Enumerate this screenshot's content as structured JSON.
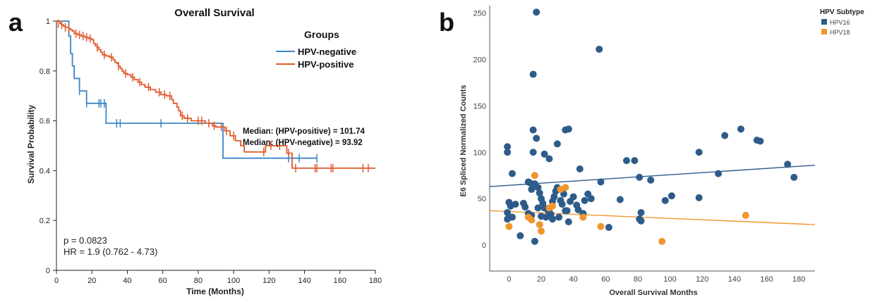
{
  "chart_data": [
    {
      "panel": "a",
      "type": "line",
      "title": "Overall Survival",
      "xlabel": "Time (Months)",
      "ylabel": "Survival Probability",
      "xlim": [
        0,
        180
      ],
      "ylim": [
        0,
        1
      ],
      "xticks": [
        "0",
        "20",
        "40",
        "60",
        "80",
        "100",
        "120",
        "140",
        "160",
        "180"
      ],
      "yticks": [
        "0",
        "0.2",
        "0.4",
        "0.6",
        "0.8",
        "1"
      ],
      "legend": {
        "title": "Groups",
        "position": "top-right"
      },
      "series": [
        {
          "name": "HPV-negative",
          "color": "#3a86c8",
          "steps": [
            [
              0,
              1
            ],
            [
              4,
              1
            ],
            [
              7,
              0.94
            ],
            [
              8,
              0.87
            ],
            [
              9,
              0.82
            ],
            [
              10,
              0.77
            ],
            [
              13,
              0.72
            ],
            [
              17,
              0.67
            ],
            [
              28,
              0.59
            ],
            [
              94,
              0.59
            ],
            [
              94,
              0.45
            ],
            [
              147,
              0.45
            ]
          ],
          "censor": [
            [
              13,
              0.72
            ],
            [
              17,
              0.67
            ],
            [
              24,
              0.67
            ],
            [
              25,
              0.67
            ],
            [
              27,
              0.67
            ],
            [
              34,
              0.59
            ],
            [
              36,
              0.59
            ],
            [
              59,
              0.59
            ],
            [
              131,
              0.45
            ],
            [
              137,
              0.45
            ],
            [
              147,
              0.45
            ]
          ]
        },
        {
          "name": "HPV-positive",
          "color": "#e05a2b",
          "steps": [
            [
              0,
              1
            ],
            [
              2,
              0.99
            ],
            [
              3,
              0.985
            ],
            [
              4,
              0.98
            ],
            [
              5,
              0.975
            ],
            [
              7,
              0.97
            ],
            [
              8,
              0.965
            ],
            [
              9,
              0.96
            ],
            [
              10,
              0.95
            ],
            [
              12,
              0.945
            ],
            [
              14,
              0.94
            ],
            [
              16,
              0.935
            ],
            [
              18,
              0.93
            ],
            [
              20,
              0.925
            ],
            [
              21,
              0.91
            ],
            [
              22,
              0.9
            ],
            [
              23,
              0.895
            ],
            [
              24,
              0.885
            ],
            [
              25,
              0.875
            ],
            [
              26,
              0.865
            ],
            [
              28,
              0.86
            ],
            [
              30,
              0.855
            ],
            [
              32,
              0.845
            ],
            [
              33,
              0.835
            ],
            [
              34,
              0.83
            ],
            [
              35,
              0.82
            ],
            [
              36,
              0.81
            ],
            [
              37,
              0.8
            ],
            [
              38,
              0.79
            ],
            [
              40,
              0.785
            ],
            [
              42,
              0.775
            ],
            [
              44,
              0.765
            ],
            [
              46,
              0.755
            ],
            [
              48,
              0.745
            ],
            [
              50,
              0.735
            ],
            [
              53,
              0.725
            ],
            [
              56,
              0.715
            ],
            [
              59,
              0.705
            ],
            [
              62,
              0.7
            ],
            [
              65,
              0.685
            ],
            [
              66,
              0.67
            ],
            [
              68,
              0.655
            ],
            [
              69,
              0.64
            ],
            [
              70,
              0.62
            ],
            [
              72,
              0.61
            ],
            [
              76,
              0.6
            ],
            [
              84,
              0.59
            ],
            [
              88,
              0.58
            ],
            [
              90,
              0.575
            ],
            [
              95,
              0.56
            ],
            [
              98,
              0.54
            ],
            [
              101,
              0.52
            ],
            [
              104,
              0.5
            ],
            [
              106,
              0.475
            ],
            [
              114,
              0.475
            ],
            [
              118,
              0.5
            ],
            [
              124,
              0.5
            ],
            [
              130,
              0.47
            ],
            [
              133,
              0.44
            ],
            [
              133,
              0.41
            ],
            [
              180,
              0.41
            ]
          ],
          "censor": [
            [
              1,
              0.99
            ],
            [
              3,
              0.985
            ],
            [
              5,
              0.975
            ],
            [
              7,
              0.97
            ],
            [
              11,
              0.95
            ],
            [
              13,
              0.945
            ],
            [
              15,
              0.94
            ],
            [
              17,
              0.935
            ],
            [
              19,
              0.93
            ],
            [
              23,
              0.895
            ],
            [
              27,
              0.865
            ],
            [
              31,
              0.855
            ],
            [
              35,
              0.82
            ],
            [
              39,
              0.79
            ],
            [
              43,
              0.775
            ],
            [
              47,
              0.755
            ],
            [
              52,
              0.735
            ],
            [
              58,
              0.715
            ],
            [
              61,
              0.705
            ],
            [
              64,
              0.7
            ],
            [
              71,
              0.62
            ],
            [
              74,
              0.61
            ],
            [
              80,
              0.6
            ],
            [
              82,
              0.6
            ],
            [
              86,
              0.59
            ],
            [
              89,
              0.58
            ],
            [
              93,
              0.575
            ],
            [
              96,
              0.56
            ],
            [
              100,
              0.54
            ],
            [
              117,
              0.475
            ],
            [
              121,
              0.5
            ],
            [
              126,
              0.5
            ],
            [
              131,
              0.47
            ],
            [
              135,
              0.41
            ],
            [
              146,
              0.41
            ],
            [
              147,
              0.41
            ],
            [
              155,
              0.41
            ],
            [
              156,
              0.41
            ],
            [
              173,
              0.41
            ],
            [
              176,
              0.41
            ]
          ]
        }
      ],
      "annotations": {
        "median_pos": "Median: (HPV-positive) = 101.74",
        "median_neg": "Median: (HPV-negative) = 93.92",
        "pvalue": "p = 0.0823",
        "hr": "HR = 1.9 (0.762 - 4.73)"
      }
    },
    {
      "panel": "b",
      "type": "scatter",
      "xlabel": "Overall Survival Months",
      "ylabel": "E6 Spliced Normalized Counts",
      "xlim": [
        -12,
        190
      ],
      "ylim": [
        -28,
        258
      ],
      "xticks": [
        "0",
        "20",
        "40",
        "60",
        "80",
        "100",
        "120",
        "140",
        "160",
        "180"
      ],
      "yticks": [
        "0",
        "50",
        "100",
        "150",
        "200",
        "250"
      ],
      "legend": {
        "title": "HPV Subtype",
        "position": "top-right"
      },
      "series": [
        {
          "name": "HPV16",
          "color": "#2e5c8a",
          "points": [
            [
              17,
              251
            ],
            [
              56,
              211
            ],
            [
              15,
              184
            ],
            [
              15,
              124
            ],
            [
              17,
              115
            ],
            [
              35,
              124
            ],
            [
              37,
              125
            ],
            [
              -1,
              106
            ],
            [
              -1,
              100
            ],
            [
              15,
              100
            ],
            [
              22,
              98
            ],
            [
              25,
              93
            ],
            [
              30,
              109
            ],
            [
              44,
              82
            ],
            [
              2,
              77
            ],
            [
              12,
              68
            ],
            [
              14,
              60
            ],
            [
              16,
              66
            ],
            [
              13,
              67
            ],
            [
              18,
              62
            ],
            [
              19,
              56
            ],
            [
              20,
              50
            ],
            [
              21,
              45
            ],
            [
              22,
              40
            ],
            [
              24,
              38
            ],
            [
              26,
              33
            ],
            [
              27,
              47
            ],
            [
              28,
              52
            ],
            [
              29,
              58
            ],
            [
              30,
              62
            ],
            [
              32,
              48
            ],
            [
              33,
              44
            ],
            [
              34,
              55
            ],
            [
              36,
              37
            ],
            [
              38,
              47
            ],
            [
              40,
              52
            ],
            [
              42,
              43
            ],
            [
              43,
              38
            ],
            [
              46,
              34
            ],
            [
              47,
              48
            ],
            [
              49,
              55
            ],
            [
              51,
              50
            ],
            [
              -1,
              35
            ],
            [
              -1,
              28
            ],
            [
              0,
              46
            ],
            [
              1,
              42
            ],
            [
              2,
              30
            ],
            [
              4,
              44
            ],
            [
              7,
              10
            ],
            [
              9,
              45
            ],
            [
              10,
              41
            ],
            [
              12,
              34
            ],
            [
              14,
              32
            ],
            [
              16,
              4
            ],
            [
              18,
              40
            ],
            [
              20,
              31
            ],
            [
              23,
              30
            ],
            [
              25,
              36
            ],
            [
              27,
              28
            ],
            [
              31,
              30
            ],
            [
              35,
              37
            ],
            [
              37,
              25
            ],
            [
              57,
              68
            ],
            [
              62,
              19
            ],
            [
              69,
              49
            ],
            [
              73,
              91
            ],
            [
              78,
              91
            ],
            [
              81,
              73
            ],
            [
              82,
              35
            ],
            [
              81,
              28
            ],
            [
              82,
              26
            ],
            [
              88,
              70
            ],
            [
              97,
              48
            ],
            [
              101,
              53
            ],
            [
              118,
              100
            ],
            [
              118,
              51
            ],
            [
              130,
              77
            ],
            [
              134,
              118
            ],
            [
              144,
              125
            ],
            [
              154,
              113
            ],
            [
              156,
              112
            ],
            [
              173,
              87
            ],
            [
              177,
              73
            ]
          ]
        },
        {
          "name": "HPV18",
          "color": "#f0962e",
          "points": [
            [
              16,
              75
            ],
            [
              0,
              20
            ],
            [
              12,
              30
            ],
            [
              14,
              27
            ],
            [
              19,
              22
            ],
            [
              20,
              15
            ],
            [
              25,
              40
            ],
            [
              27,
              42
            ],
            [
              32,
              60
            ],
            [
              35,
              62
            ],
            [
              46,
              30
            ],
            [
              57,
              20
            ],
            [
              95,
              4
            ],
            [
              147,
              32
            ]
          ]
        }
      ],
      "trendlines": [
        {
          "series": "HPV16",
          "from": [
            -12,
            63
          ],
          "to": [
            190,
            86
          ]
        },
        {
          "series": "HPV18",
          "from": [
            -12,
            37
          ],
          "to": [
            190,
            22
          ]
        }
      ]
    }
  ]
}
